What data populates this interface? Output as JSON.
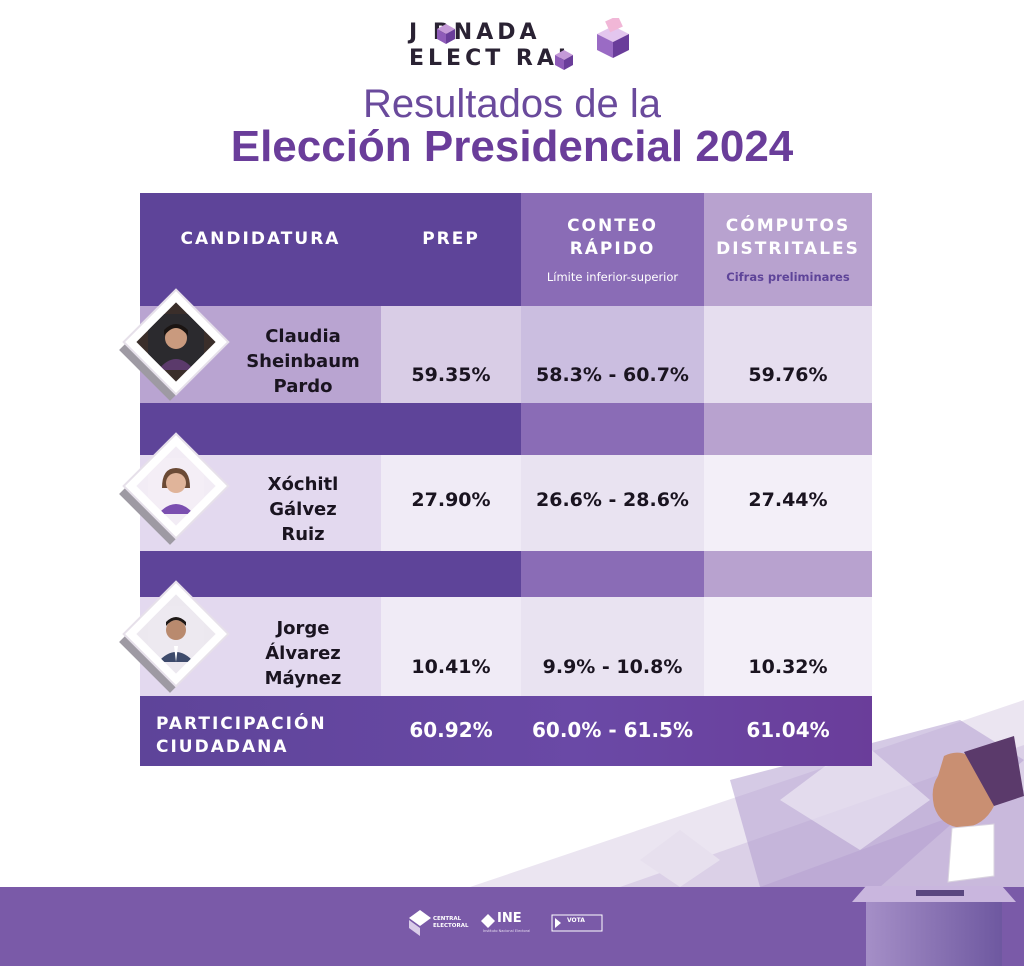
{
  "logo": {
    "line1": "J   RNADA",
    "line2": "ELECT   RAL"
  },
  "title": {
    "line1": "Resultados de la",
    "line2": "Elección Presidencial 2024"
  },
  "table": {
    "headers": {
      "candidatura": "CANDIDATURA",
      "prep": "PREP",
      "conteo_line1": "CONTEO",
      "conteo_line2": "RÁPIDO",
      "conteo_sub": "Límite inferior-superior",
      "computos_line1": "CÓMPUTOS",
      "computos_line2": "DISTRITALES",
      "computos_sub": "Cifras preliminares"
    },
    "candidates": [
      {
        "name_line1": "Claudia",
        "name_line2": "Sheinbaum",
        "name_line3": "Pardo",
        "prep": "59.35%",
        "conteo": "58.3% - 60.7%",
        "computos": "59.76%"
      },
      {
        "name_line1": "Xóchitl",
        "name_line2": "Gálvez",
        "name_line3": "Ruiz",
        "prep": "27.90%",
        "conteo": "26.6% - 28.6%",
        "computos": "27.44%"
      },
      {
        "name_line1": "Jorge",
        "name_line2": "Álvarez",
        "name_line3": "Máynez",
        "prep": "10.41%",
        "conteo": "9.9% - 10.8%",
        "computos": "10.32%"
      }
    ],
    "participacion": {
      "label_line1": "PARTICIPACIÓN",
      "label_line2": "CIUDADANA",
      "prep": "60.92%",
      "conteo": "60.0% - 61.5%",
      "computos": "61.04%"
    }
  },
  "footer": {
    "logo1": "CENTRAL ELECTORAL",
    "logo2": "INE",
    "logo2_sub": "Instituto Nacional Electoral",
    "logo3": "VOTA"
  },
  "colors": {
    "header_dark": "#5e4499",
    "col2_header": "#8a6cb6",
    "col3_header": "#b8a2cf",
    "title": "#6a3d9a"
  },
  "icons": [
    "jornada-logo-icon",
    "ballot-box-icon",
    "hand-ballot-icon",
    "central-electoral-icon",
    "ine-icon",
    "vota-icon"
  ]
}
